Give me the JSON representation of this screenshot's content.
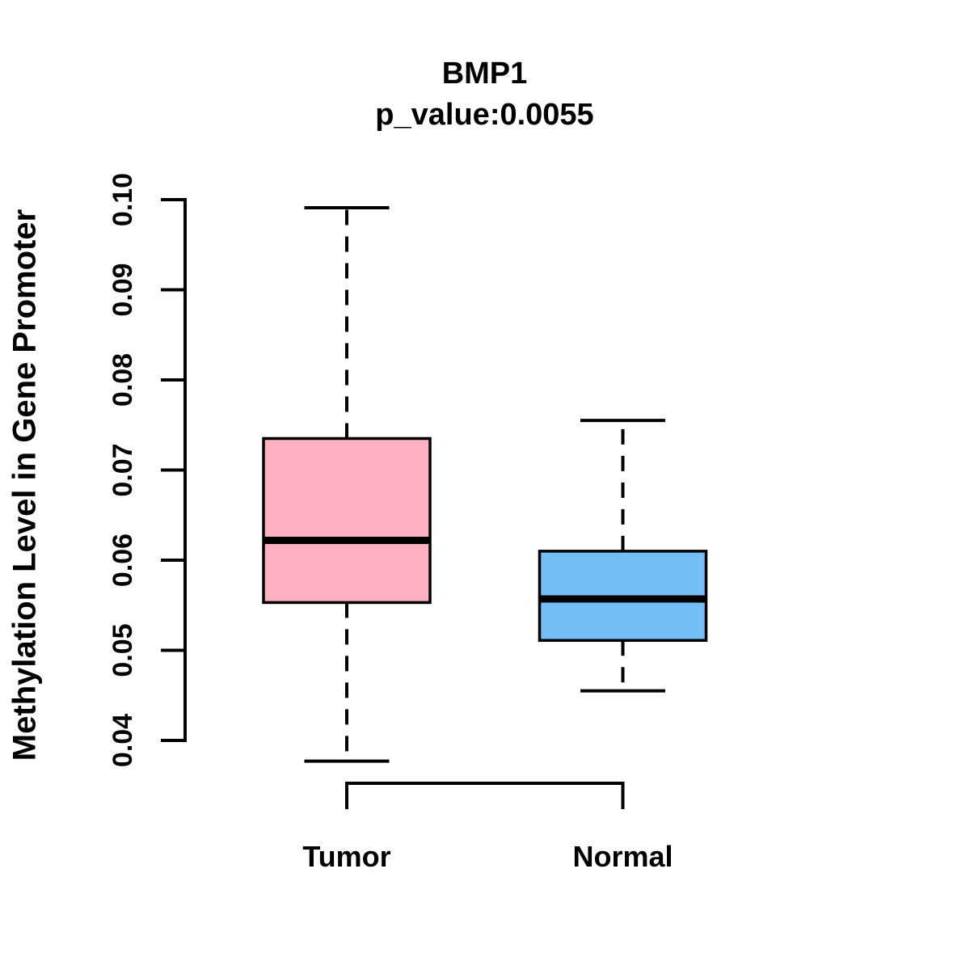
{
  "chart_data": {
    "type": "boxplot",
    "title": "BMP1",
    "subtitle": "p_value:0.0055",
    "ylabel": "Methylation Level in Gene Promoter",
    "xlabel": "",
    "ylim": [
      0.04,
      0.1
    ],
    "yticks": [
      0.04,
      0.05,
      0.06,
      0.07,
      0.08,
      0.09,
      0.1
    ],
    "ytick_labels": [
      "0.04",
      "0.05",
      "0.06",
      "0.07",
      "0.08",
      "0.09",
      "0.10"
    ],
    "categories": [
      "Tumor",
      "Normal"
    ],
    "grid": false,
    "legend": "none",
    "series": [
      {
        "name": "Tumor",
        "box_color": "#FFB0C3",
        "whisker_low": 0.0377,
        "q1": 0.0553,
        "median": 0.0622,
        "q3": 0.0735,
        "whisker_high": 0.0991
      },
      {
        "name": "Normal",
        "box_color": "#74BEF7",
        "whisker_low": 0.0455,
        "q1": 0.0511,
        "median": 0.0557,
        "q3": 0.061,
        "whisker_high": 0.0755
      }
    ]
  },
  "colors": {
    "stroke": "#000000",
    "background": "#FFFFFF"
  }
}
